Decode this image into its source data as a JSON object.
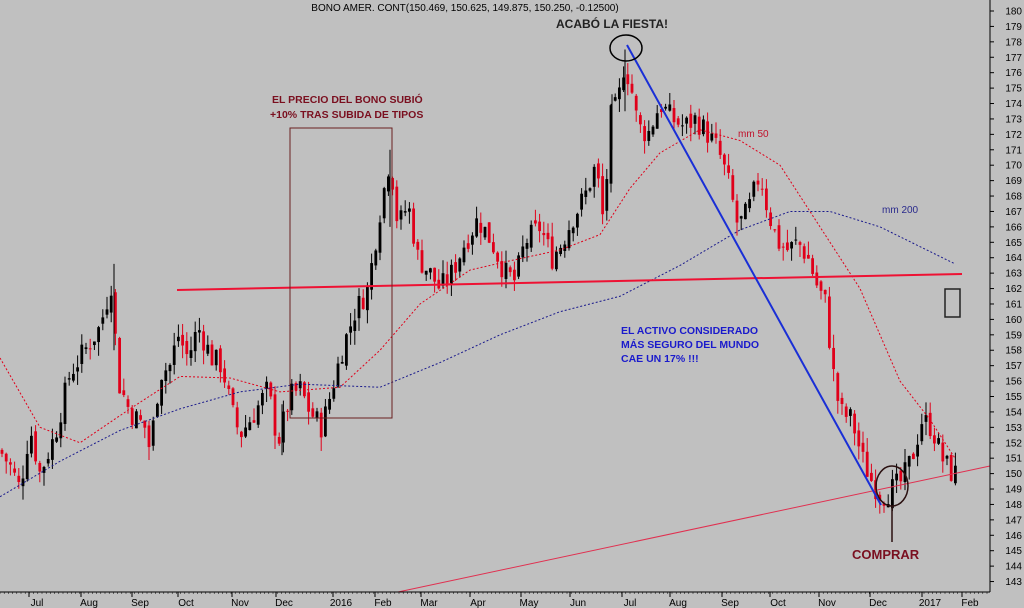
{
  "chart_data": {
    "type": "candlestick",
    "title": "BONO AMER. CONT(150.469, 150.625, 149.875, 150.250, -0.12500)",
    "ylim": [
      142,
      181
    ],
    "y_ticks": [
      143,
      144,
      145,
      146,
      147,
      148,
      149,
      150,
      151,
      152,
      153,
      154,
      155,
      156,
      157,
      158,
      159,
      160,
      161,
      162,
      163,
      164,
      165,
      166,
      167,
      168,
      169,
      170,
      171,
      172,
      173,
      174,
      175,
      176,
      177,
      178,
      179,
      180
    ],
    "x_tick_labels": [
      "Jul",
      "Aug",
      "Sep",
      "Oct",
      "Nov",
      "Dec",
      "2016",
      "Feb",
      "Mar",
      "Apr",
      "May",
      "Jun",
      "Jul",
      "Aug",
      "Sep",
      "Oct",
      "Nov",
      "Dec",
      "2017",
      "Feb"
    ],
    "series": [
      {
        "name": "mm 50",
        "color": "#e0001a",
        "style": "dashed",
        "points": [
          [
            0,
            157.5
          ],
          [
            40,
            153
          ],
          [
            80,
            152
          ],
          [
            130,
            154.2
          ],
          [
            180,
            156.3
          ],
          [
            230,
            156.2
          ],
          [
            280,
            155.3
          ],
          [
            340,
            155.6
          ],
          [
            380,
            158
          ],
          [
            420,
            161
          ],
          [
            470,
            163.2
          ],
          [
            510,
            163.8
          ],
          [
            560,
            164.5
          ],
          [
            600,
            165.5
          ],
          [
            630,
            168.5
          ],
          [
            660,
            170.8
          ],
          [
            700,
            172.3
          ],
          [
            740,
            171.6
          ],
          [
            780,
            170
          ],
          [
            820,
            166
          ],
          [
            860,
            162
          ],
          [
            900,
            156
          ],
          [
            930,
            153.5
          ],
          [
            955,
            151
          ]
        ]
      },
      {
        "name": "mm 200",
        "color": "#1a1a8c",
        "style": "dashed",
        "points": [
          [
            0,
            148.5
          ],
          [
            60,
            150.8
          ],
          [
            120,
            152.8
          ],
          [
            180,
            154.2
          ],
          [
            240,
            155.3
          ],
          [
            300,
            155.8
          ],
          [
            380,
            155.6
          ],
          [
            440,
            157.2
          ],
          [
            500,
            159
          ],
          [
            560,
            160.5
          ],
          [
            620,
            161.5
          ],
          [
            680,
            163.5
          ],
          [
            740,
            165.8
          ],
          [
            790,
            167
          ],
          [
            830,
            167
          ],
          [
            880,
            166
          ],
          [
            955,
            163.6
          ]
        ]
      }
    ],
    "annotations": [
      {
        "text": "ACABÓ LA FIESTA!",
        "color": "#222222"
      },
      {
        "text": "EL PRECIO DEL BONO SUBIÓ",
        "color": "#7a0f1f"
      },
      {
        "text": "+10% TRAS SUBIDA DE TIPOS",
        "color": "#7a0f1f"
      },
      {
        "text": "mm 50",
        "color": "#c0102a"
      },
      {
        "text": "mm 200",
        "color": "#2a2a8c"
      },
      {
        "text": "EL ACTIVO CONSIDERADO",
        "color": "#1a1acc"
      },
      {
        "text": "MÁS SEGURO DEL MUNDO",
        "color": "#1a1acc"
      },
      {
        "text": "CAE UN 17% !!!",
        "color": "#1a1acc"
      },
      {
        "text": "COMPRAR",
        "color": "#7a0f1f"
      }
    ],
    "trendlines": [
      {
        "name": "horizontal-resistance",
        "color": "#ee1133"
      },
      {
        "name": "uptrend-support",
        "color": "#e03050"
      },
      {
        "name": "decline-line",
        "color": "#1a2fd6"
      }
    ],
    "up_color": "#000000",
    "down_color": "#e0001a",
    "background": "#c0c0c0"
  }
}
